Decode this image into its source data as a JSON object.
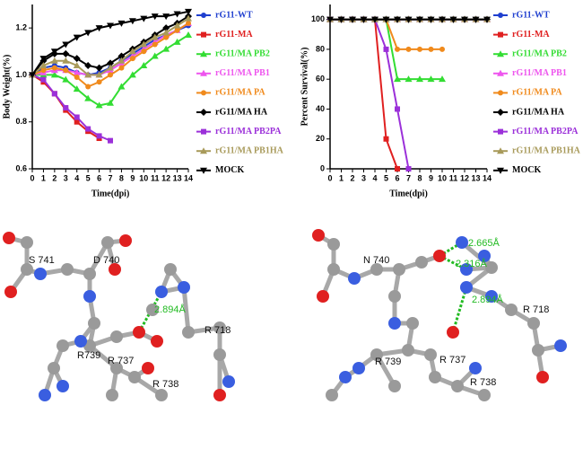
{
  "chart_data": [
    {
      "type": "line",
      "y_label": "Body Weight(%)",
      "x_label": "Time(dpi)",
      "x": [
        0,
        1,
        2,
        3,
        4,
        5,
        6,
        7,
        8,
        9,
        10,
        11,
        12,
        13,
        14
      ],
      "xlim": [
        0,
        14
      ],
      "xticks": [
        0,
        1,
        2,
        3,
        4,
        5,
        6,
        7,
        8,
        9,
        10,
        11,
        12,
        13,
        14
      ],
      "ylim": [
        0.6,
        1.3
      ],
      "yticks": [
        0.6,
        {
          "value": 0.8,
          "label": "0.8"
        },
        {
          "value": 1.0,
          "label": "1.0"
        },
        1.2
      ],
      "series": [
        {
          "name": "rG11-WT",
          "color": "#1f3fcf",
          "values": [
            1.0,
            1.03,
            1.04,
            1.03,
            1.01,
            1.0,
            1.01,
            1.03,
            1.06,
            1.09,
            1.12,
            1.15,
            1.17,
            1.19,
            1.21
          ]
        },
        {
          "name": "rG11-MA",
          "color": "#e02020",
          "values": [
            1.0,
            0.97,
            0.92,
            0.85,
            0.8,
            0.76,
            0.73,
            null,
            null,
            null,
            null,
            null,
            null,
            null,
            null
          ]
        },
        {
          "name": "rG11/MA PB2",
          "color": "#33dd33",
          "values": [
            1.0,
            1.0,
            1.0,
            0.98,
            0.94,
            0.9,
            0.87,
            0.88,
            0.95,
            1.0,
            1.04,
            1.08,
            1.11,
            1.14,
            1.17
          ]
        },
        {
          "name": "rG11/MA PB1",
          "color": "#ee55ee",
          "values": [
            1.0,
            1.01,
            1.02,
            1.02,
            1.01,
            1.0,
            1.0,
            1.02,
            1.05,
            1.08,
            1.11,
            1.14,
            1.17,
            1.19,
            1.22
          ]
        },
        {
          "name": "rG11/MA PA",
          "color": "#f08a1c",
          "values": [
            1.0,
            1.02,
            1.03,
            1.02,
            0.99,
            0.95,
            0.97,
            1.0,
            1.03,
            1.07,
            1.1,
            1.13,
            1.16,
            1.19,
            1.22
          ]
        },
        {
          "name": "rG11/MA HA",
          "color": "#000000",
          "values": [
            1.0,
            1.06,
            1.09,
            1.09,
            1.07,
            1.04,
            1.03,
            1.05,
            1.08,
            1.11,
            1.14,
            1.17,
            1.2,
            1.22,
            1.25
          ]
        },
        {
          "name": "rG11/MA PB2PA",
          "color": "#9b30d9",
          "values": [
            1.0,
            0.98,
            0.92,
            0.86,
            0.82,
            0.77,
            0.74,
            0.72,
            null,
            null,
            null,
            null,
            null,
            null,
            null
          ]
        },
        {
          "name": "rG11/MA PB1HA",
          "color": "#a89a5a",
          "values": [
            1.0,
            1.04,
            1.06,
            1.06,
            1.04,
            1.0,
            1.0,
            1.03,
            1.06,
            1.1,
            1.13,
            1.16,
            1.18,
            1.21,
            1.24
          ]
        },
        {
          "name": "MOCK",
          "color": "#000000",
          "values": [
            1.0,
            1.07,
            1.1,
            1.13,
            1.16,
            1.18,
            1.2,
            1.21,
            1.22,
            1.23,
            1.24,
            1.25,
            1.25,
            1.26,
            1.27
          ]
        }
      ]
    },
    {
      "type": "line",
      "y_label": "Percent Survival(%)",
      "x_label": "Time(dpi)",
      "x": [
        0,
        1,
        2,
        3,
        4,
        5,
        6,
        7,
        8,
        9,
        10,
        11,
        12,
        13,
        14
      ],
      "xlim": [
        0,
        14
      ],
      "xticks": [
        0,
        1,
        2,
        3,
        4,
        5,
        6,
        7,
        8,
        9,
        10,
        11,
        12,
        13,
        14
      ],
      "ylim": [
        0,
        110
      ],
      "yticks": [
        0,
        20,
        40,
        60,
        80,
        100
      ],
      "series": [
        {
          "name": "rG11-WT",
          "color": "#1f3fcf",
          "values": [
            100,
            100,
            100,
            100,
            100,
            100,
            100,
            100,
            100,
            100,
            100,
            100,
            100,
            100,
            100
          ]
        },
        {
          "name": "rG11-MA",
          "color": "#e02020",
          "values": [
            100,
            100,
            100,
            100,
            100,
            20,
            0,
            null,
            null,
            null,
            null,
            null,
            null,
            null,
            null
          ]
        },
        {
          "name": "rG11/MA PB2",
          "color": "#33dd33",
          "values": [
            100,
            100,
            100,
            100,
            100,
            100,
            60,
            60,
            60,
            60,
            60,
            null,
            null,
            null,
            null
          ]
        },
        {
          "name": "rG11/MA PB1",
          "color": "#ee55ee",
          "values": [
            100,
            100,
            100,
            100,
            100,
            100,
            100,
            100,
            100,
            100,
            100,
            100,
            100,
            100,
            100
          ]
        },
        {
          "name": "rG11/MA PA",
          "color": "#f08a1c",
          "values": [
            100,
            100,
            100,
            100,
            100,
            100,
            80,
            80,
            80,
            80,
            80,
            null,
            null,
            null,
            null
          ]
        },
        {
          "name": "rG11/MA HA",
          "color": "#000000",
          "values": [
            100,
            100,
            100,
            100,
            100,
            100,
            100,
            100,
            100,
            100,
            100,
            100,
            100,
            100,
            100
          ]
        },
        {
          "name": "rG11/MA PB2PA",
          "color": "#9b30d9",
          "values": [
            100,
            100,
            100,
            100,
            100,
            80,
            40,
            0,
            null,
            null,
            null,
            null,
            null,
            null,
            null
          ]
        },
        {
          "name": "rG11/MA PB1HA",
          "color": "#a89a5a",
          "values": [
            100,
            100,
            100,
            100,
            100,
            100,
            100,
            100,
            100,
            100,
            100,
            100,
            100,
            100,
            100
          ]
        },
        {
          "name": "MOCK",
          "color": "#000000",
          "values": [
            100,
            100,
            100,
            100,
            100,
            100,
            100,
            100,
            100,
            100,
            100,
            100,
            100,
            100,
            100
          ]
        }
      ]
    }
  ],
  "structures": [
    {
      "labels": [
        "S 741",
        "D 740",
        "2.894Å",
        "R 718",
        "R739",
        "R 737",
        "R 738"
      ]
    },
    {
      "labels": [
        "N 740",
        "2.665Å",
        "2.316Å",
        "2.894Å",
        "R 718",
        "R 739",
        "R 737",
        "R 738"
      ]
    }
  ]
}
